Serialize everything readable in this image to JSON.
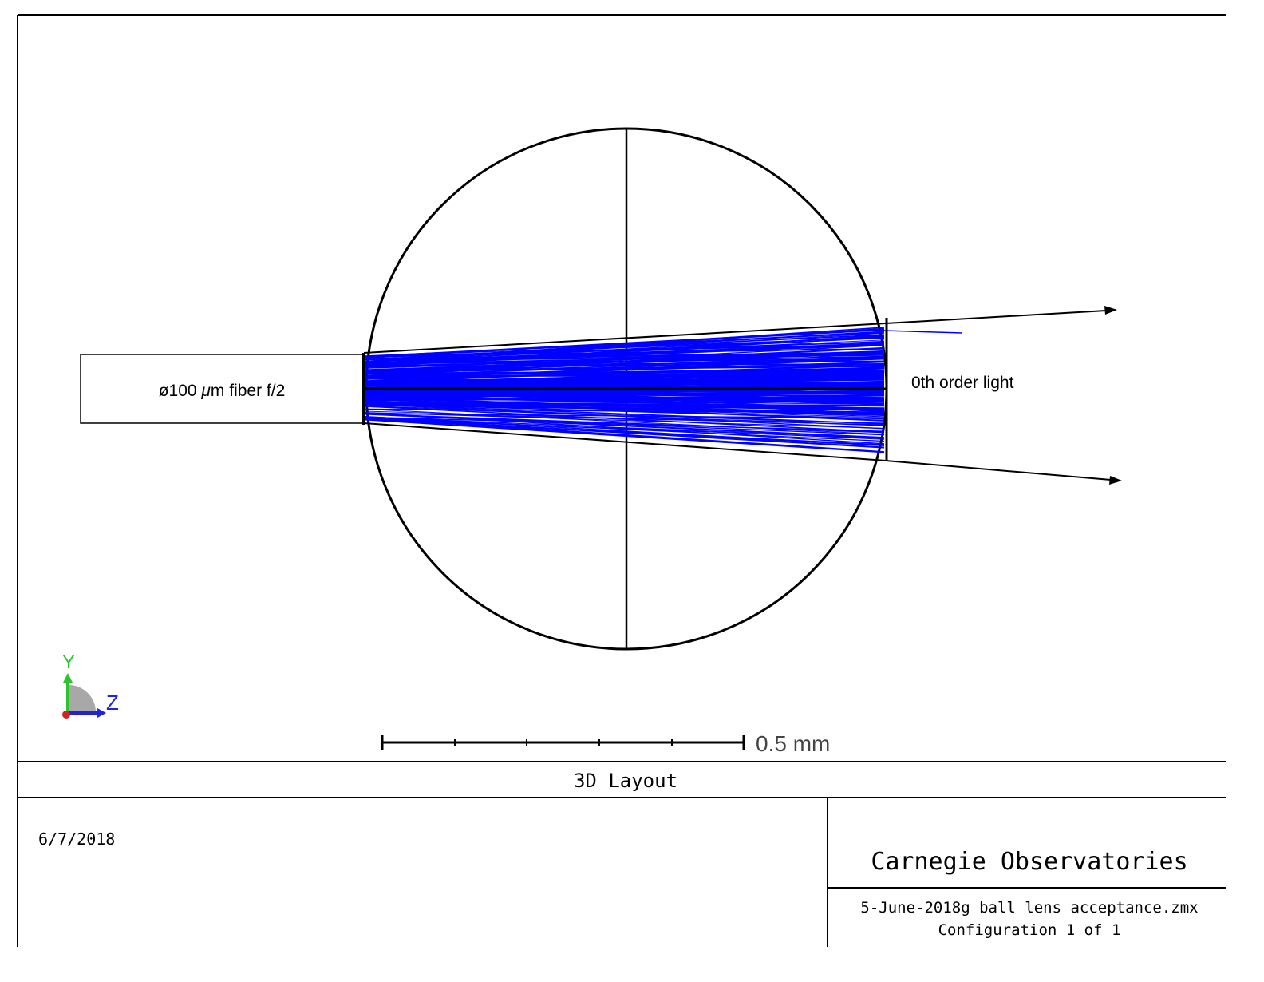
{
  "diagram": {
    "fiber_label_prefix": "ø100 ",
    "fiber_label_unit_mu": "μ",
    "fiber_label_suffix": "m fiber f/2",
    "order_label": "0th order light",
    "scale_bar_label": "0.5 mm",
    "axis_y_label": "Y",
    "axis_z_label": "Z",
    "ray_color": "#0000ff",
    "line_color": "#000000",
    "axis_y_color": "#2bc52b",
    "axis_z_color": "#2323d6",
    "axis_x_color": "#d42020",
    "axis_shade_color": "#a0a0a0"
  },
  "footer": {
    "title": "3D Layout",
    "date": "6/7/2018",
    "organization": "Carnegie Observatories",
    "filename": "5-June-2018g ball lens acceptance.zmx",
    "configuration": "Configuration 1 of 1"
  }
}
